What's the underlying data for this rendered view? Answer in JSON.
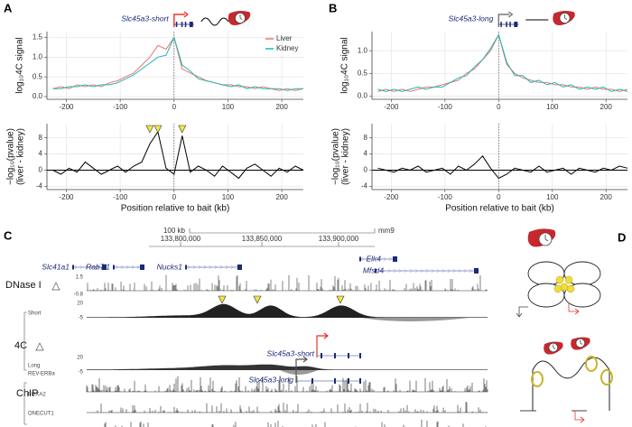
{
  "panels": [
    "A",
    "B",
    "C",
    "D"
  ],
  "chart_data": [
    {
      "type": "line",
      "title": "Slc45a3-short",
      "y_label": "log₁₀4C signal",
      "x": [
        -225,
        -210,
        -195,
        -180,
        -165,
        -150,
        -135,
        -120,
        -105,
        -90,
        -75,
        -60,
        -45,
        -30,
        -15,
        0,
        15,
        30,
        45,
        60,
        75,
        90,
        105,
        120,
        135,
        150,
        165,
        180,
        195,
        210,
        225,
        240
      ],
      "series": [
        {
          "name": "Liver",
          "color": "#e8776f",
          "values": [
            0.2,
            0.25,
            0.2,
            0.3,
            0.25,
            0.3,
            0.25,
            0.35,
            0.4,
            0.5,
            0.6,
            0.8,
            1.0,
            1.3,
            1.2,
            1.5,
            0.7,
            0.6,
            0.5,
            0.4,
            0.35,
            0.3,
            0.3,
            0.25,
            0.25,
            0.2,
            0.25,
            0.2,
            0.15,
            0.2,
            0.15,
            0.2
          ]
        },
        {
          "name": "Kidney",
          "color": "#1fb5b5",
          "values": [
            0.2,
            0.2,
            0.25,
            0.25,
            0.3,
            0.25,
            0.3,
            0.3,
            0.35,
            0.45,
            0.55,
            0.7,
            0.85,
            1.0,
            1.05,
            1.5,
            0.8,
            0.65,
            0.45,
            0.4,
            0.35,
            0.3,
            0.25,
            0.3,
            0.2,
            0.25,
            0.2,
            0.2,
            0.2,
            0.15,
            0.2,
            0.2
          ]
        }
      ],
      "xlim": [
        -236,
        240
      ],
      "xticks": [
        -200,
        -100,
        0,
        100,
        200
      ],
      "ylim": [
        -0.07,
        1.65
      ],
      "yticks": [
        {
          "value": 0,
          "label": "0.0"
        },
        {
          "value": 0.5,
          "label": "0.5"
        },
        {
          "value": 1,
          "label": "1.0"
        },
        {
          "value": 1.5,
          "label": "1.5"
        }
      ],
      "grid": true,
      "legend": "top-right"
    },
    {
      "type": "line",
      "y_label": [
        "−log₁₀(pvalue)",
        "(liver - kidney)"
      ],
      "x_label": "Position relative to bait (kb)",
      "x": [
        -225,
        -210,
        -195,
        -180,
        -165,
        -150,
        -135,
        -120,
        -105,
        -90,
        -75,
        -60,
        -45,
        -30,
        -15,
        0,
        15,
        30,
        45,
        60,
        75,
        90,
        105,
        120,
        135,
        150,
        165,
        180,
        195,
        210,
        225,
        240
      ],
      "series": [
        {
          "color": "#000000",
          "values": [
            0,
            -1,
            0.5,
            -0.5,
            2,
            0.5,
            -1,
            0,
            1,
            -0.5,
            1,
            2,
            6.5,
            9.5,
            0.5,
            -1,
            8.5,
            -0.5,
            1,
            0,
            -1.5,
            1,
            -0.5,
            -2,
            0.5,
            1.5,
            0,
            -1.5,
            0.5,
            -0.5,
            1,
            0
          ]
        }
      ],
      "markers_x": [
        -45,
        -30,
        15
      ],
      "marker_color": "#f5e642",
      "xlim": [
        -236,
        240
      ],
      "xticks": [
        -200,
        -100,
        0,
        100,
        200
      ],
      "ylim": [
        -4.8,
        11.5
      ],
      "yticks": [
        -4,
        0,
        4,
        8
      ],
      "grid": true
    },
    {
      "type": "line",
      "title": "Slc45a3-long",
      "y_label": "log₁₀4C signal",
      "x": [
        -225,
        -210,
        -195,
        -180,
        -165,
        -150,
        -135,
        -120,
        -105,
        -90,
        -75,
        -60,
        -45,
        -30,
        -15,
        0,
        15,
        30,
        45,
        60,
        75,
        90,
        105,
        120,
        135,
        150,
        165,
        180,
        195,
        210,
        225,
        240
      ],
      "series": [
        {
          "name": "Liver",
          "color": "#e8776f",
          "values": [
            0.1,
            0.15,
            0.1,
            0.15,
            0.1,
            0.15,
            0.2,
            0.2,
            0.25,
            0.3,
            0.35,
            0.5,
            0.6,
            0.8,
            1.0,
            1.35,
            0.7,
            0.5,
            0.4,
            0.35,
            0.3,
            0.3,
            0.25,
            0.25,
            0.2,
            0.2,
            0.15,
            0.2,
            0.15,
            0.15,
            0.1,
            0.15
          ]
        },
        {
          "name": "Kidney",
          "color": "#1fb5b5",
          "values": [
            0.15,
            0.1,
            0.15,
            0.1,
            0.15,
            0.2,
            0.15,
            0.2,
            0.2,
            0.3,
            0.4,
            0.45,
            0.65,
            0.8,
            1.05,
            1.35,
            0.75,
            0.45,
            0.45,
            0.3,
            0.35,
            0.25,
            0.3,
            0.2,
            0.25,
            0.15,
            0.2,
            0.15,
            0.2,
            0.1,
            0.15,
            0.1
          ]
        }
      ],
      "xlim": [
        -236,
        240
      ],
      "xticks": [
        -200,
        -100,
        0,
        100,
        200
      ],
      "ylim": [
        -0.07,
        1.42
      ],
      "yticks": [
        {
          "value": 0,
          "label": "0.0"
        },
        {
          "value": 0.5,
          "label": "0.5"
        },
        {
          "value": 1,
          "label": "1.0"
        }
      ],
      "grid": true,
      "legend": false
    },
    {
      "type": "line",
      "y_label": [
        "−log₁₀(pvalue)",
        "(liver - kidney)"
      ],
      "x_label": "Position relative to bait (kb)",
      "x": [
        -225,
        -210,
        -195,
        -180,
        -165,
        -150,
        -135,
        -120,
        -105,
        -90,
        -75,
        -60,
        -45,
        -30,
        -15,
        0,
        15,
        30,
        45,
        60,
        75,
        90,
        105,
        120,
        135,
        150,
        165,
        180,
        195,
        210,
        225,
        240
      ],
      "series": [
        {
          "color": "#000000",
          "values": [
            0.5,
            0,
            -0.5,
            0.5,
            0,
            1,
            -0.5,
            0,
            0.5,
            -1,
            1,
            0,
            1.5,
            3.5,
            0.5,
            -2,
            -1,
            0.5,
            0,
            -0.5,
            1,
            -0.5,
            0,
            0.5,
            -1,
            0.5,
            0,
            -0.5,
            0.5,
            0,
            1,
            0.5
          ]
        }
      ],
      "xlim": [
        -236,
        240
      ],
      "xticks": [
        -200,
        -100,
        0,
        100,
        200
      ],
      "ylim": [
        -4.8,
        11.5
      ],
      "yticks": [
        -4,
        0,
        4,
        8
      ],
      "grid": true
    }
  ],
  "panel_c": {
    "scale": "100 kb",
    "genome": "mm9",
    "coordinates": [
      "133,800,000",
      "133,850,000",
      "133,900,000"
    ],
    "genes": [
      "Slc41a1",
      "Rab7l1",
      "Nucks1",
      "Elk4",
      "Mfsd4"
    ],
    "promoters": [
      "Slc45a3-short",
      "Slc45a3-long"
    ],
    "tracks": {
      "dnase": "DNase I",
      "dnase_scale": [
        "1.5",
        "-0.8"
      ],
      "fourc": "4C",
      "short": "Short",
      "long": "Long",
      "fourc_scale": [
        "20",
        "-5"
      ],
      "chip": "ChIP",
      "factors": [
        "REV-ERBa",
        "FOXA2",
        "ONECUT1"
      ]
    }
  }
}
